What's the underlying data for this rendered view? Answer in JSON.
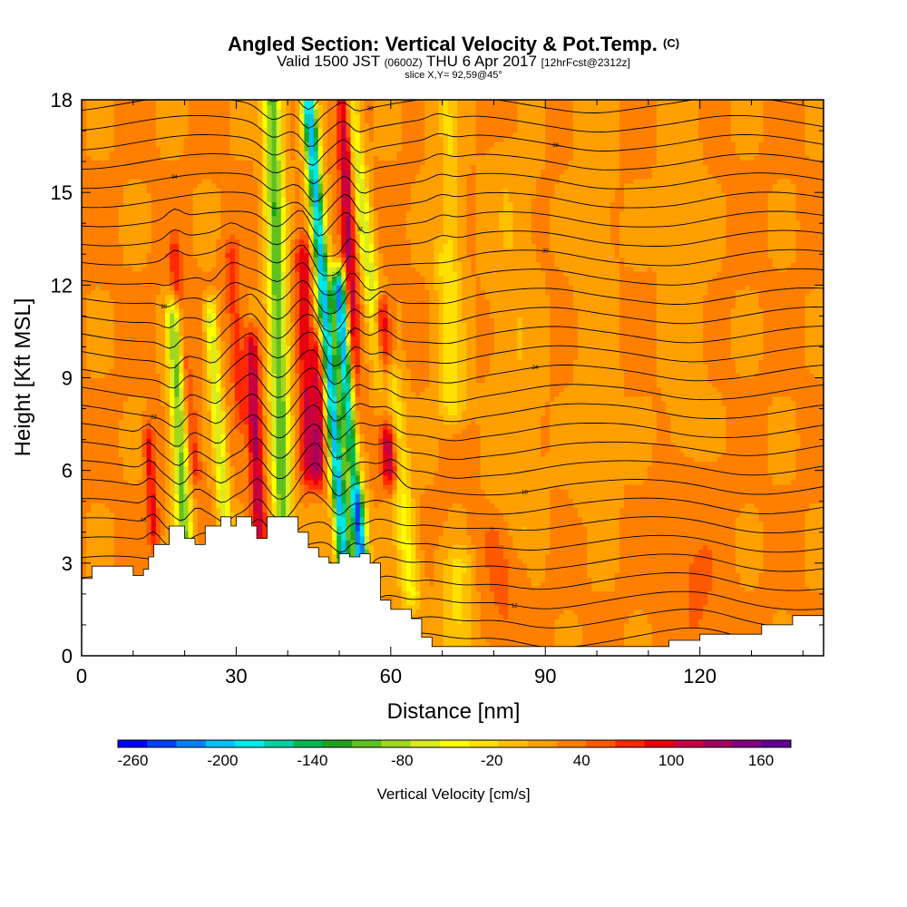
{
  "title": {
    "main": "Angled Section: Vertical Velocity & Pot.Temp.",
    "main_suffix": "(C)",
    "valid_a": "Valid 1500 JST",
    "valid_b": "(0600Z)",
    "valid_c": "THU 6 Apr 2017",
    "valid_d": "[12hrFcst@2312z]",
    "slice": "slice X,Y= 92,59@45°"
  },
  "chart_data": {
    "type": "heatmap",
    "xlabel": "Distance [nm]",
    "ylabel": "Height [Kft MSL]",
    "xlim": [
      0,
      144
    ],
    "ylim": [
      0,
      18
    ],
    "x_ticks": [
      0,
      30,
      60,
      90,
      120
    ],
    "y_ticks": [
      0,
      3,
      6,
      9,
      12,
      15,
      18
    ],
    "colorbar": {
      "label": "Vertical Velocity [cm/s]",
      "ticks": [
        -260,
        -200,
        -140,
        -80,
        -20,
        40,
        100,
        160
      ],
      "min": -270,
      "max": 180,
      "colors": [
        "#0000ff",
        "#0040ff",
        "#0080ff",
        "#00c0ff",
        "#00e8e8",
        "#00d0a0",
        "#00b850",
        "#20a020",
        "#60c020",
        "#a0d820",
        "#d8ec20",
        "#ffff00",
        "#ffe000",
        "#ffc000",
        "#ffa000",
        "#ff8000",
        "#ff5800",
        "#ff2800",
        "#e80010",
        "#c80040",
        "#a00060",
        "#800080",
        "#600090"
      ]
    },
    "background_w": 25,
    "terrain": [
      [
        0,
        2.5
      ],
      [
        2,
        2.9
      ],
      [
        5,
        2.9
      ],
      [
        8,
        2.9
      ],
      [
        10,
        2.6
      ],
      [
        12,
        2.8
      ],
      [
        13,
        3.2
      ],
      [
        14,
        3.6
      ],
      [
        15,
        3.6
      ],
      [
        17,
        4.2
      ],
      [
        19,
        4.2
      ],
      [
        20,
        3.8
      ],
      [
        22,
        3.6
      ],
      [
        24,
        4.2
      ],
      [
        27,
        4.5
      ],
      [
        29,
        4.2
      ],
      [
        30,
        4.5
      ],
      [
        33,
        4.2
      ],
      [
        34,
        3.8
      ],
      [
        36,
        4.5
      ],
      [
        40,
        4.5
      ],
      [
        42,
        4.0
      ],
      [
        44,
        3.5
      ],
      [
        46,
        3.2
      ],
      [
        48,
        3.0
      ],
      [
        50,
        3.3
      ],
      [
        52,
        3.2
      ],
      [
        54,
        3.3
      ],
      [
        56,
        3.0
      ],
      [
        58,
        1.8
      ],
      [
        60,
        1.5
      ],
      [
        62,
        1.5
      ],
      [
        64,
        1.2
      ],
      [
        66,
        0.6
      ],
      [
        68,
        0.3
      ],
      [
        73,
        0.3
      ],
      [
        90,
        0.3
      ],
      [
        113,
        0.3
      ],
      [
        114,
        0.5
      ],
      [
        120,
        0.7
      ],
      [
        128,
        0.7
      ],
      [
        132,
        1.0
      ],
      [
        137,
        1.0
      ],
      [
        138,
        1.3
      ],
      [
        144,
        1.3
      ]
    ],
    "velocity_bands": [
      {
        "x0": 20,
        "x1": 18,
        "y0": 3.5,
        "y1": 11,
        "w": -100,
        "half_width": 1.6
      },
      {
        "x0": 14,
        "x1": 13,
        "y0": 4.0,
        "y1": 7,
        "w": 90,
        "half_width": 1.0
      },
      {
        "x0": 22,
        "x1": 18,
        "y0": 6,
        "y1": 13,
        "w": 80,
        "half_width": 1.2
      },
      {
        "x0": 28,
        "x1": 25,
        "y0": 4,
        "y1": 11,
        "w": -70,
        "half_width": 1.2
      },
      {
        "x0": 34.5,
        "x1": 33,
        "y0": 4.0,
        "y1": 10,
        "w": 120,
        "half_width": 1.3
      },
      {
        "x0": 31,
        "x1": 29,
        "y0": 8,
        "y1": 13,
        "w": 70,
        "half_width": 1.5
      },
      {
        "x0": 39,
        "x1": 37,
        "y0": 4.5,
        "y1": 18,
        "w": -110,
        "half_width": 1.8
      },
      {
        "x0": 44,
        "x1": 43,
        "y0": 6,
        "y1": 13,
        "w": 100,
        "half_width": 1.5
      },
      {
        "x0": 51,
        "x1": 44,
        "y0": 3,
        "y1": 18,
        "w": -200,
        "half_width": 1.4
      },
      {
        "x0": 46,
        "x1": 46,
        "y0": 6,
        "y1": 10,
        "w": 110,
        "half_width": 1.2
      },
      {
        "x0": 55,
        "x1": 50,
        "y0": 1.5,
        "y1": 12,
        "w": -240,
        "half_width": 1.4
      },
      {
        "x0": 53,
        "x1": 51,
        "y0": 6,
        "y1": 18,
        "w": 130,
        "half_width": 1.4
      },
      {
        "x0": 60,
        "x1": 58,
        "y0": 6,
        "y1": 11,
        "w": 140,
        "half_width": 1.5
      },
      {
        "x0": 59,
        "x1": 52,
        "y0": 8,
        "y1": 18,
        "w": -70,
        "half_width": 1.5
      },
      {
        "x0": 64,
        "x1": 60,
        "y0": 2,
        "y1": 9,
        "w": -40,
        "half_width": 2.0
      },
      {
        "x0": 72,
        "x1": 70,
        "y0": 8,
        "y1": 18,
        "w": -30,
        "half_width": 2.5
      },
      {
        "x0": 73,
        "x1": 73,
        "y0": 0,
        "y1": 3,
        "w": -20,
        "half_width": 3.0
      },
      {
        "x0": 85,
        "x1": 83,
        "y0": 4,
        "y1": 16,
        "w": 5,
        "half_width": 4.0
      },
      {
        "x0": 100,
        "x1": 99,
        "y0": 5,
        "y1": 18,
        "w": 10,
        "half_width": 3.5
      },
      {
        "x0": 118,
        "x1": 116,
        "y0": 4,
        "y1": 18,
        "w": 10,
        "half_width": 3.5
      },
      {
        "x0": 70,
        "x1": 69,
        "y0": 14,
        "y1": 18,
        "w": 60,
        "half_width": 1.5
      },
      {
        "x0": 82,
        "x1": 80,
        "y0": 1,
        "y1": 4,
        "w": 45,
        "half_width": 4.0
      },
      {
        "x0": 120,
        "x1": 118,
        "y0": 1,
        "y1": 6,
        "w": 45,
        "half_width": 5.0
      }
    ],
    "isentropes": {
      "count": 30,
      "base_height": 0.5,
      "spacing": 0.62,
      "label_values": [
        "10",
        "12",
        "14",
        "16",
        "18",
        "20",
        "22",
        "24",
        "26",
        "28",
        "30",
        "32",
        "34",
        "36",
        "38",
        "40",
        "42",
        "44",
        "46",
        "48",
        "50"
      ]
    }
  }
}
